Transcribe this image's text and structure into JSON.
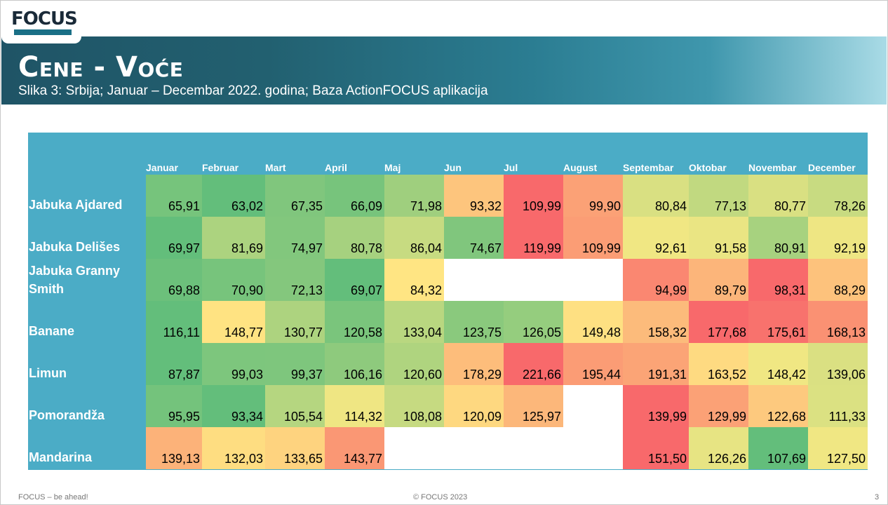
{
  "header": {
    "logo_text": "FOCUS",
    "title": "Cene - Voće",
    "subtitle": "Slika 3: Srbija; Januar – Decembar 2022. godina; Baza ActionFOCUS aplikacija"
  },
  "footer": {
    "left": "FOCUS – be ahead!",
    "center": "© FOCUS 2023",
    "page": "3"
  },
  "colors": {
    "table_header_bg": "#4bacc6",
    "low": "#63be7b",
    "mid": "#ffeb84",
    "high": "#f8696b"
  },
  "chart_data": {
    "type": "heatmap",
    "columns": [
      "Januar",
      "Februar",
      "Mart",
      "April",
      "Maj",
      "Jun",
      "Jul",
      "August",
      "Septembar",
      "Oktobar",
      "Novembar",
      "December"
    ],
    "rows": [
      {
        "label": "Jabuka Ajdared",
        "values": [
          "65,91",
          "63,02",
          "67,35",
          "66,09",
          "71,98",
          "93,32",
          "109,99",
          "99,90",
          "80,84",
          "77,13",
          "80,77",
          "78,26"
        ]
      },
      {
        "label": "Jabuka Delišes",
        "values": [
          "69,97",
          "81,69",
          "74,97",
          "80,78",
          "86,04",
          "74,67",
          "119,99",
          "109,99",
          "92,61",
          "91,58",
          "80,91",
          "92,19"
        ]
      },
      {
        "label": "Jabuka Granny Smith",
        "values": [
          "69,88",
          "70,90",
          "72,13",
          "69,07",
          "84,32",
          "",
          "",
          "",
          "94,99",
          "89,79",
          "98,31",
          "88,29"
        ]
      },
      {
        "label": "Banane",
        "values": [
          "116,11",
          "148,77",
          "130,77",
          "120,58",
          "133,04",
          "123,75",
          "126,05",
          "149,48",
          "158,32",
          "177,68",
          "175,61",
          "168,13"
        ]
      },
      {
        "label": "Limun",
        "values": [
          "87,87",
          "99,03",
          "99,37",
          "106,16",
          "120,60",
          "178,29",
          "221,66",
          "195,44",
          "191,31",
          "163,52",
          "148,42",
          "139,06"
        ]
      },
      {
        "label": "Pomorandža",
        "values": [
          "95,95",
          "93,34",
          "105,54",
          "114,32",
          "108,08",
          "120,09",
          "125,97",
          "",
          "139,99",
          "129,99",
          "122,68",
          "111,33"
        ]
      },
      {
        "label": "Mandarina",
        "values": [
          "139,13",
          "132,03",
          "133,65",
          "143,77",
          "",
          "",
          "",
          "",
          "151,50",
          "126,26",
          "107,69",
          "127,50"
        ]
      }
    ]
  }
}
